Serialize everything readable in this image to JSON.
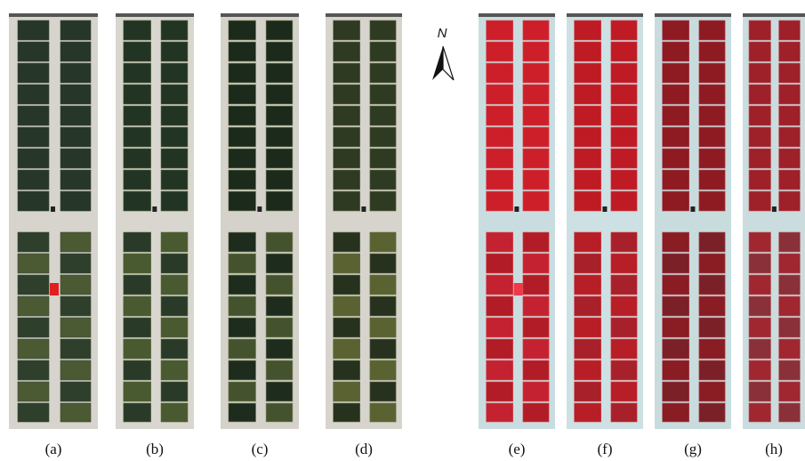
{
  "north_label": "N",
  "panels": [
    {
      "label": "(a)"
    },
    {
      "label": "(b)"
    },
    {
      "label": "(c)"
    },
    {
      "label": "(d)"
    },
    {
      "label": "(e)"
    },
    {
      "label": "(f)"
    },
    {
      "label": "(g)"
    },
    {
      "label": "(h)"
    }
  ]
}
